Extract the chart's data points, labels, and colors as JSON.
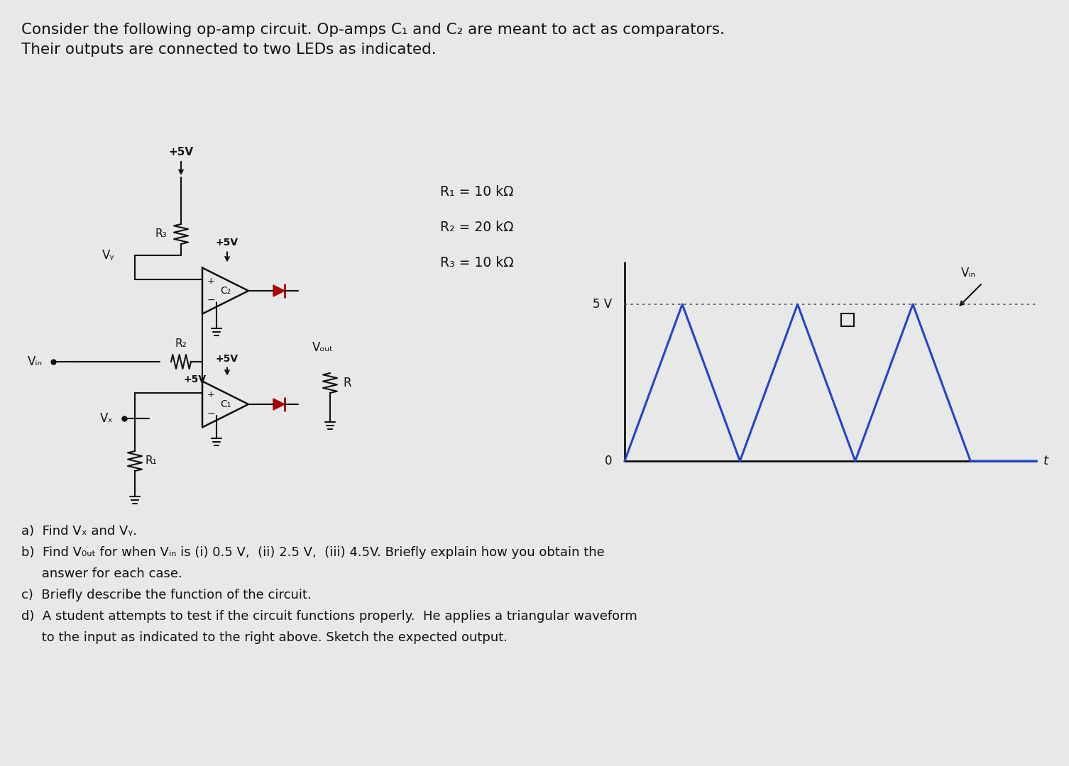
{
  "bg_color": "#e8e8e8",
  "title_line1": "Consider the following op-amp circuit. Op-amps C₁ and C₂ are meant to act as comparators.",
  "title_line2": "Their outputs are connected to two LEDs as indicated.",
  "r1_label": "R₁ = 10 kΩ",
  "r2_label": "R₂ = 20 kΩ",
  "r3_label": "R₃ = 10 kΩ",
  "qa_label": "a)  Find Vₓ and Vᵧ.",
  "qb_label": "b)  Find V₀ᵤₜ for when Vᵢₙ is (i) 0.5 V,  (ii) 2.5 V,  (iii) 4.5V. Briefly explain how you obtain the",
  "qb_label2": "     answer for each case.",
  "qc_label": "c)  Briefly describe the function of the circuit.",
  "qd_label": "d)  A student attempts to test if the circuit functions properly.  He applies a triangular waveform",
  "qd_label2": "     to the input as indicated to the right above. Sketch the expected output.",
  "waveform_5v_label": "5 V",
  "waveform_0_label": "0",
  "waveform_t_label": "t",
  "waveform_vin_label": "Vᵢₙ",
  "waveform_color": "#2244cc",
  "waveform_dotted_color": "#555555",
  "axis_color": "#111111",
  "text_color": "#111111",
  "font_size_title": 15.5,
  "font_size_labels": 13.5,
  "font_size_qa": 13.0
}
